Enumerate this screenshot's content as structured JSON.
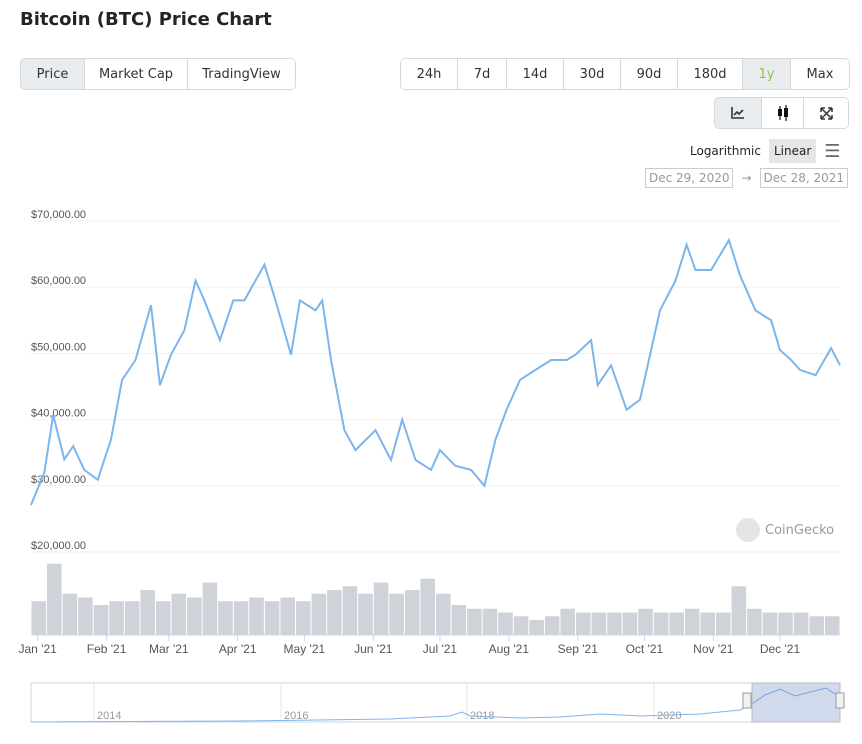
{
  "title": "Bitcoin (BTC) Price Chart",
  "tabs": [
    "Price",
    "Market Cap",
    "TradingView"
  ],
  "active_tab": "Price",
  "ranges": [
    "24h",
    "7d",
    "14d",
    "30d",
    "90d",
    "180d",
    "1y",
    "Max"
  ],
  "active_range": "1y",
  "chart_types": [
    {
      "icon": "line-chart-icon"
    },
    {
      "icon": "candlestick-icon"
    },
    {
      "icon": "fullscreen-icon"
    }
  ],
  "scale": {
    "log": "Logarithmic",
    "linear": "Linear",
    "active": "Linear",
    "menu_icon": "hamburger-menu-icon"
  },
  "date_range": {
    "from": "Dec 29, 2020",
    "arrow": "→",
    "to": "Dec 28, 2021"
  },
  "watermark": "CoinGecko",
  "colors": {
    "line": "#7cb5ec",
    "volume": "#cfd2d8",
    "active_range": "#8dc647",
    "navigator_mask": "rgba(102,133,194,0.3)"
  },
  "chart_data": {
    "type": "line",
    "ylim": [
      20000,
      70000
    ],
    "y_ticks": [
      "$20,000.00",
      "$30,000.00",
      "$40,000.00",
      "$50,000.00",
      "$60,000.00",
      "$70,000.00"
    ],
    "y_tick_values": [
      20000,
      30000,
      40000,
      50000,
      60000,
      70000
    ],
    "x_ticks": [
      "Jan '21",
      "Feb '21",
      "Mar '21",
      "Apr '21",
      "May '21",
      "Jun '21",
      "Jul '21",
      "Aug '21",
      "Sep '21",
      "Oct '21",
      "Nov '21",
      "Dec '21"
    ],
    "x_tick_dates": [
      "2021-01-01",
      "2021-02-01",
      "2021-03-01",
      "2021-04-01",
      "2021-05-01",
      "2021-06-01",
      "2021-07-01",
      "2021-08-01",
      "2021-09-01",
      "2021-10-01",
      "2021-11-01",
      "2021-12-01"
    ],
    "xlim": [
      "2020-12-29",
      "2021-12-28"
    ],
    "grid": true,
    "series": [
      {
        "points": [
          [
            "2020-12-29",
            27100
          ],
          [
            "2021-01-04",
            32000
          ],
          [
            "2021-01-08",
            40700
          ],
          [
            "2021-01-13",
            34000
          ],
          [
            "2021-01-17",
            36000
          ],
          [
            "2021-01-22",
            32400
          ],
          [
            "2021-01-28",
            30900
          ],
          [
            "2021-02-03",
            37000
          ],
          [
            "2021-02-08",
            46000
          ],
          [
            "2021-02-14",
            49000
          ],
          [
            "2021-02-21",
            57300
          ],
          [
            "2021-02-25",
            45200
          ],
          [
            "2021-03-02",
            49800
          ],
          [
            "2021-03-08",
            53500
          ],
          [
            "2021-03-13",
            61000
          ],
          [
            "2021-03-17",
            58000
          ],
          [
            "2021-03-24",
            52000
          ],
          [
            "2021-03-30",
            58000
          ],
          [
            "2021-04-04",
            58000
          ],
          [
            "2021-04-13",
            63400
          ],
          [
            "2021-04-18",
            58000
          ],
          [
            "2021-04-25",
            49800
          ],
          [
            "2021-04-29",
            58000
          ],
          [
            "2021-05-06",
            56500
          ],
          [
            "2021-05-09",
            58000
          ],
          [
            "2021-05-13",
            49000
          ],
          [
            "2021-05-19",
            38400
          ],
          [
            "2021-05-24",
            35400
          ],
          [
            "2021-06-02",
            38400
          ],
          [
            "2021-06-09",
            33900
          ],
          [
            "2021-06-14",
            40000
          ],
          [
            "2021-06-20",
            33900
          ],
          [
            "2021-06-27",
            32400
          ],
          [
            "2021-07-01",
            35400
          ],
          [
            "2021-07-08",
            33000
          ],
          [
            "2021-07-15",
            32400
          ],
          [
            "2021-07-21",
            30000
          ],
          [
            "2021-07-26",
            37000
          ],
          [
            "2021-07-31",
            41500
          ],
          [
            "2021-08-06",
            46000
          ],
          [
            "2021-08-13",
            47500
          ],
          [
            "2021-08-20",
            49000
          ],
          [
            "2021-08-27",
            49000
          ],
          [
            "2021-08-31",
            49800
          ],
          [
            "2021-09-07",
            52000
          ],
          [
            "2021-09-10",
            45200
          ],
          [
            "2021-09-16",
            48200
          ],
          [
            "2021-09-23",
            41500
          ],
          [
            "2021-09-29",
            43000
          ],
          [
            "2021-10-04",
            50500
          ],
          [
            "2021-10-08",
            56500
          ],
          [
            "2021-10-15",
            61000
          ],
          [
            "2021-10-20",
            66400
          ],
          [
            "2021-10-24",
            62600
          ],
          [
            "2021-10-31",
            62600
          ],
          [
            "2021-11-08",
            67100
          ],
          [
            "2021-11-13",
            61800
          ],
          [
            "2021-11-20",
            56500
          ],
          [
            "2021-11-27",
            55000
          ],
          [
            "2021-12-01",
            50500
          ],
          [
            "2021-12-06",
            49000
          ],
          [
            "2021-12-10",
            47500
          ],
          [
            "2021-12-17",
            46700
          ],
          [
            "2021-12-24",
            50800
          ],
          [
            "2021-12-28",
            48200
          ]
        ]
      }
    ],
    "volume_relative": [
      0.45,
      0.95,
      0.55,
      0.5,
      0.4,
      0.45,
      0.45,
      0.6,
      0.45,
      0.55,
      0.5,
      0.7,
      0.45,
      0.45,
      0.5,
      0.45,
      0.5,
      0.45,
      0.55,
      0.6,
      0.65,
      0.55,
      0.7,
      0.55,
      0.6,
      0.75,
      0.55,
      0.4,
      0.35,
      0.35,
      0.3,
      0.25,
      0.2,
      0.25,
      0.35,
      0.3,
      0.3,
      0.3,
      0.3,
      0.35,
      0.3,
      0.3,
      0.35,
      0.3,
      0.3,
      0.65,
      0.35,
      0.3,
      0.3,
      0.3,
      0.25,
      0.25
    ],
    "navigator": {
      "x_ticks": [
        "2014",
        "2016",
        "2018",
        "2020"
      ]
    }
  }
}
